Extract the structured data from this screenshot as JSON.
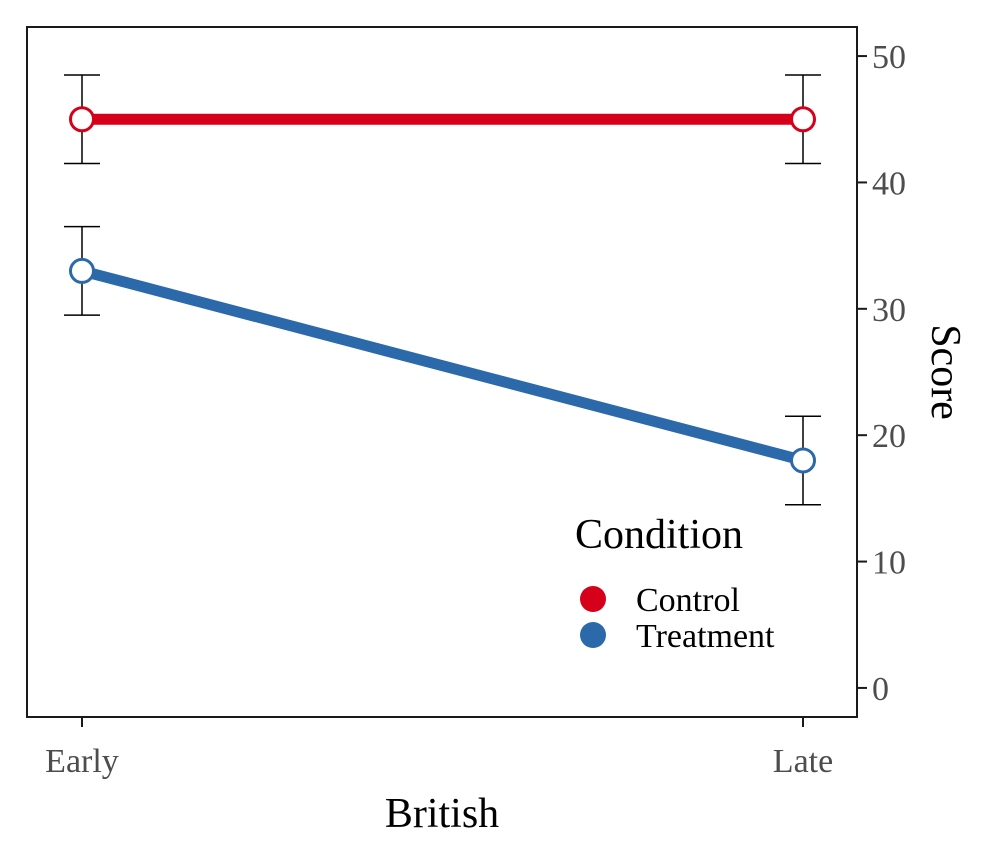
{
  "chart_data": {
    "type": "line",
    "xlabel": "British",
    "ylabel": "Score",
    "categories": [
      "Early",
      "Late"
    ],
    "ylim": [
      -2.3,
      52.3
    ],
    "yticks": [
      0,
      10,
      20,
      30,
      40,
      50
    ],
    "y_axis_position": "right",
    "grid": false,
    "legend": {
      "title": "Condition",
      "position": "bottom-right-inside"
    },
    "series": [
      {
        "name": "Control",
        "color": "#d7001a",
        "values": [
          45,
          45
        ],
        "err_low": [
          41.5,
          41.5
        ],
        "err_high": [
          48.5,
          48.5
        ]
      },
      {
        "name": "Treatment",
        "color": "#2b69ab",
        "values": [
          33,
          18
        ],
        "err_low": [
          29.5,
          14.5
        ],
        "err_high": [
          36.5,
          21.5
        ]
      }
    ]
  }
}
